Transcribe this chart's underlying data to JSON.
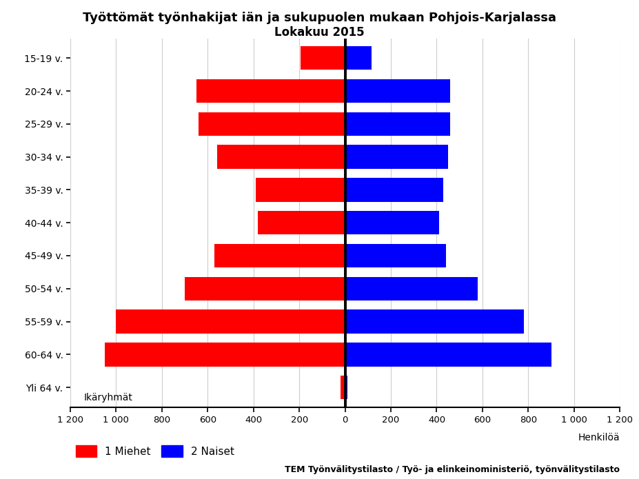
{
  "title_line1": "Työttömät työnhakijat iän ja sukupuolen mukaan Pohjois-Karjalassa",
  "title_line2": "Lokakuu 2015",
  "ylabel_top": "Ikäryhmät",
  "xlabel": "Henkilöä",
  "age_groups": [
    "15-19 v.",
    "20-24 v.",
    "25-29 v.",
    "30-34 v.",
    "35-39 v.",
    "40-44 v.",
    "45-49 v.",
    "50-54 v.",
    "55-59 v.",
    "60-64 v.",
    "Yli 64 v."
  ],
  "men_values": [
    195,
    650,
    640,
    560,
    390,
    380,
    570,
    700,
    1000,
    1050,
    20
  ],
  "women_values": [
    115,
    460,
    460,
    450,
    430,
    410,
    440,
    580,
    780,
    900,
    10
  ],
  "men_color": "#FF0000",
  "women_color": "#0000FF",
  "legend_men": "1 Miehet",
  "legend_women": "2 Naiset",
  "footer": "TEM Työnvälitystilasto / Työ- ja elinkeinoministeriö, työnvälitystilasto",
  "xlim": 1200,
  "xticks": [
    -1200,
    -1000,
    -800,
    -600,
    -400,
    -200,
    0,
    200,
    400,
    600,
    800,
    1000,
    1200
  ],
  "xtick_labels": [
    "1 200",
    "1 000",
    "800",
    "600",
    "400",
    "200",
    "0",
    "200",
    "400",
    "600",
    "800",
    "1 000",
    "1 200"
  ],
  "background_color": "#FFFFFF",
  "grid_color": "#CCCCCC"
}
